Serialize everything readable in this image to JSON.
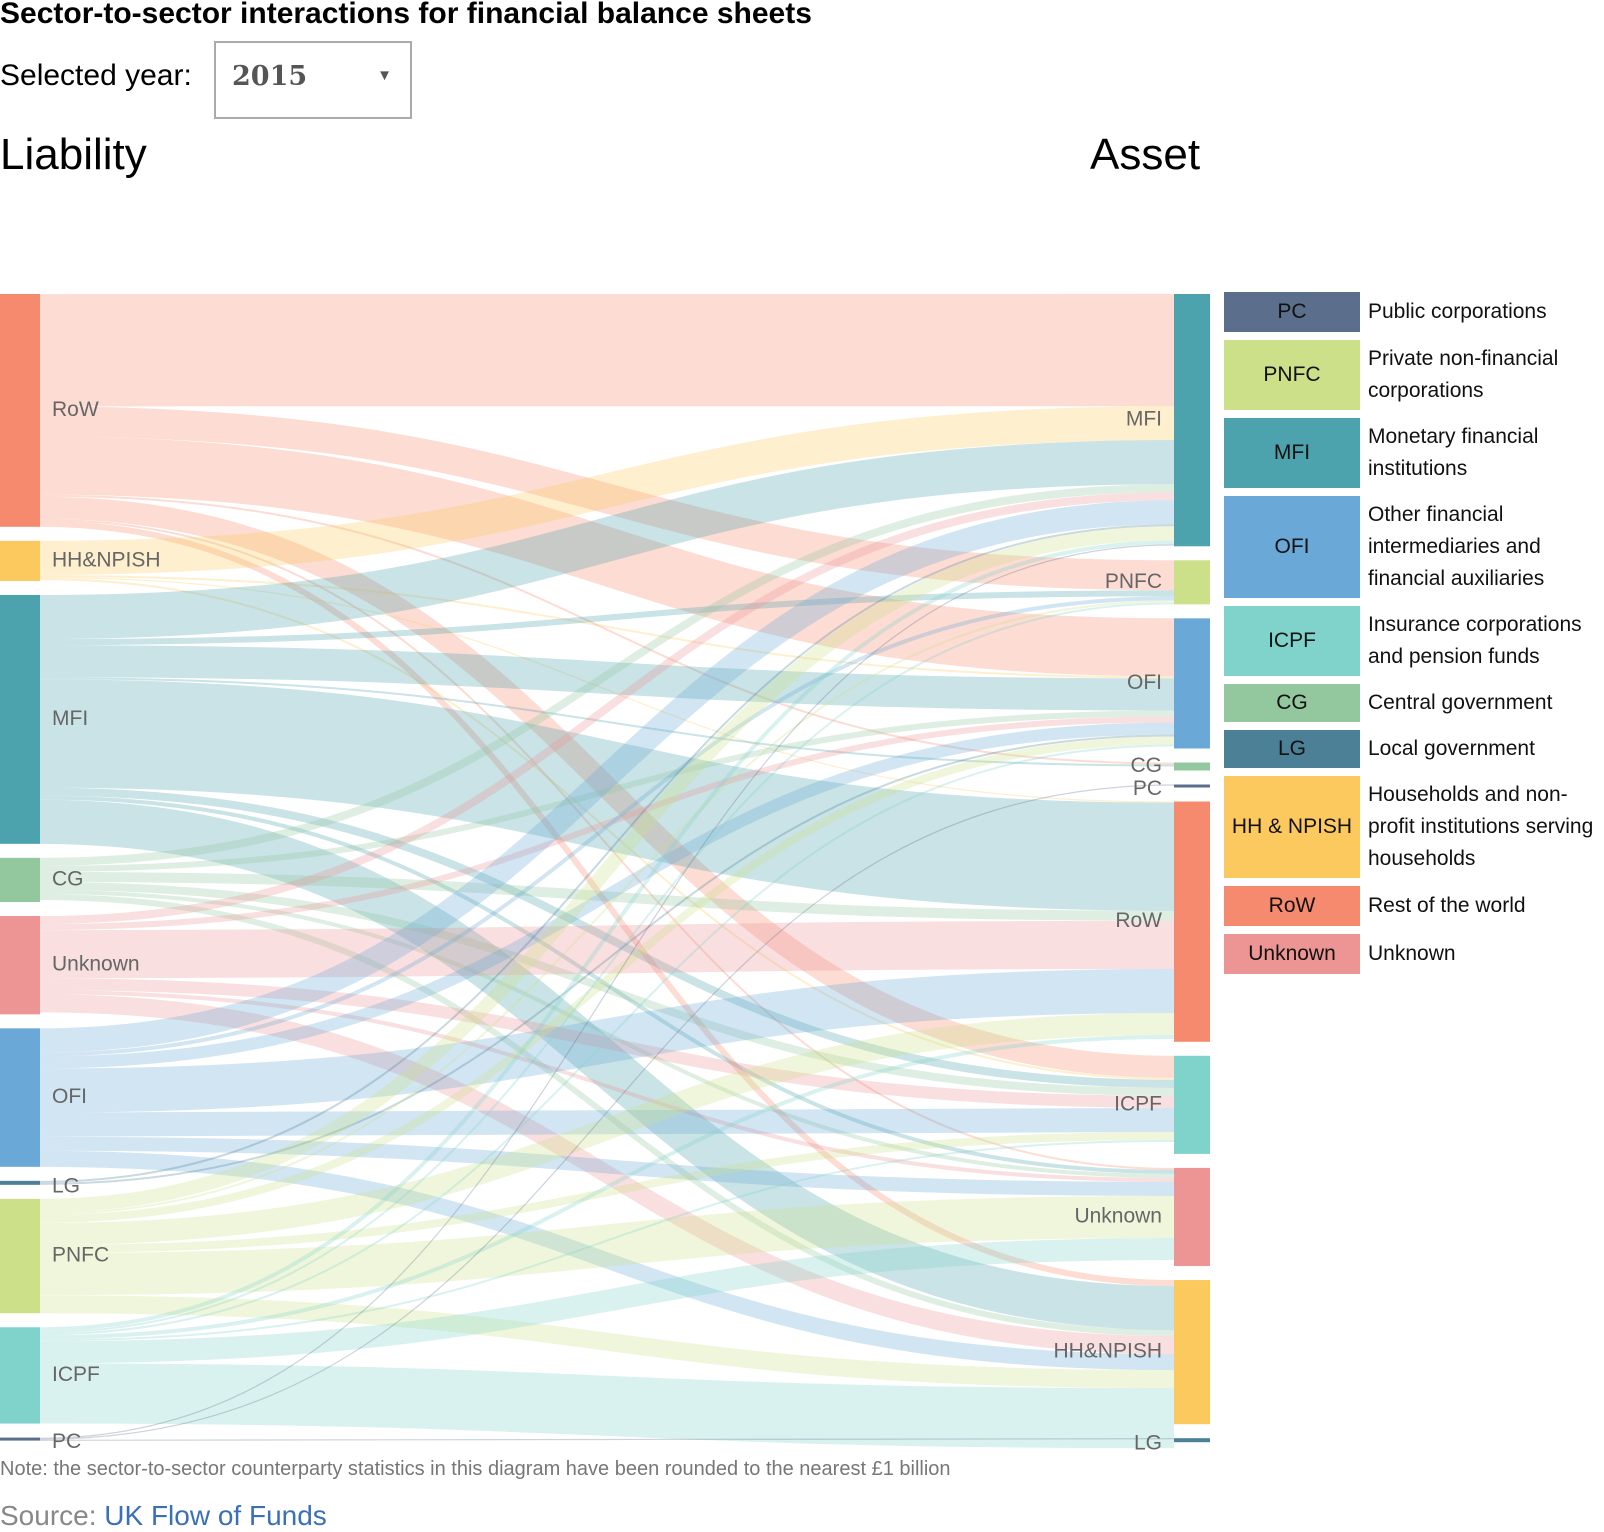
{
  "title": "Sector-to-sector interactions for financial balance sheets",
  "year_selector": {
    "label": "Selected year:",
    "value": "2015"
  },
  "left_heading": "Liability",
  "right_heading": "Asset",
  "colors": {
    "PC": "#5b6e8c",
    "PNFC": "#cce08a",
    "MFI": "#4da3ad",
    "OFI": "#6aa8d8",
    "ICPF": "#80d3cb",
    "CG": "#93c89e",
    "LG": "#4b8096",
    "HH&NPISH": "#fbc95e",
    "RoW": "#f58a6e",
    "Unknown": "#ec9594"
  },
  "legend": [
    {
      "code": "PC",
      "name": "Public corporations"
    },
    {
      "code": "PNFC",
      "name": "Private non-financial corporations"
    },
    {
      "code": "MFI",
      "name": "Monetary financial institutions"
    },
    {
      "code": "OFI",
      "name": "Other financial intermediaries and financial auxiliaries"
    },
    {
      "code": "ICPF",
      "name": "Insurance corporations and pension funds"
    },
    {
      "code": "CG",
      "name": "Central government"
    },
    {
      "code": "LG",
      "name": "Local government"
    },
    {
      "code": "HH & NPISH",
      "name": "Households and non-profit institutions serving households"
    },
    {
      "code": "RoW",
      "name": "Rest of the world"
    },
    {
      "code": "Unknown",
      "name": "Unknown"
    }
  ],
  "chart_data": {
    "type": "sankey",
    "left_nodes": [
      {
        "id": "RoW",
        "label": "RoW",
        "color": "RoW",
        "value": 580
      },
      {
        "id": "HH&NPISH",
        "label": "HH&NPISH",
        "color": "HH&NPISH",
        "value": 100
      },
      {
        "id": "MFI",
        "label": "MFI",
        "color": "MFI",
        "value": 620
      },
      {
        "id": "CG",
        "label": "CG",
        "color": "CG",
        "value": 110
      },
      {
        "id": "Unknown",
        "label": "Unknown",
        "color": "Unknown",
        "value": 245
      },
      {
        "id": "OFI",
        "label": "OFI",
        "color": "OFI",
        "value": 345
      },
      {
        "id": "LG",
        "label": "LG",
        "color": "LG",
        "value": 10
      },
      {
        "id": "PNFC",
        "label": "PNFC",
        "color": "PNFC",
        "value": 285
      },
      {
        "id": "ICPF",
        "label": "ICPF",
        "color": "ICPF",
        "value": 240
      },
      {
        "id": "PC",
        "label": "PC",
        "color": "PC",
        "value": 6
      }
    ],
    "right_nodes": [
      {
        "id": "MFI",
        "label": "MFI",
        "color": "MFI",
        "value": 630
      },
      {
        "id": "PNFC",
        "label": "PNFC",
        "color": "PNFC",
        "value": 110
      },
      {
        "id": "OFI",
        "label": "OFI",
        "color": "OFI",
        "value": 325
      },
      {
        "id": "CG",
        "label": "CG",
        "color": "CG",
        "value": 20
      },
      {
        "id": "PC",
        "label": "PC",
        "color": "PC",
        "value": 2
      },
      {
        "id": "RoW",
        "label": "RoW",
        "color": "RoW",
        "value": 600
      },
      {
        "id": "ICPF",
        "label": "ICPF",
        "color": "ICPF",
        "value": 245
      },
      {
        "id": "Unknown",
        "label": "Unknown",
        "color": "Unknown",
        "value": 245
      },
      {
        "id": "HH&NPISH",
        "label": "HH&NPISH",
        "color": "HH&NPISH",
        "value": 360
      },
      {
        "id": "LG",
        "label": "LG",
        "color": "LG",
        "value": 10
      }
    ],
    "links": [
      {
        "source": "RoW",
        "target": "MFI",
        "value": 280
      },
      {
        "source": "RoW",
        "target": "PNFC",
        "value": 75
      },
      {
        "source": "RoW",
        "target": "OFI",
        "value": 145
      },
      {
        "source": "RoW",
        "target": "ICPF",
        "value": 55
      },
      {
        "source": "RoW",
        "target": "HH&NPISH",
        "value": 15
      },
      {
        "source": "RoW",
        "target": "CG",
        "value": 5
      },
      {
        "source": "RoW",
        "target": "Unknown",
        "value": 5
      },
      {
        "source": "HH&NPISH",
        "target": "MFI",
        "value": 85
      },
      {
        "source": "HH&NPISH",
        "target": "OFI",
        "value": 5
      },
      {
        "source": "HH&NPISH",
        "target": "ICPF",
        "value": 5
      },
      {
        "source": "HH&NPISH",
        "target": "RoW",
        "value": 3
      },
      {
        "source": "MFI",
        "target": "MFI",
        "value": 110
      },
      {
        "source": "MFI",
        "target": "PNFC",
        "value": 15
      },
      {
        "source": "MFI",
        "target": "OFI",
        "value": 80
      },
      {
        "source": "MFI",
        "target": "CG",
        "value": 5
      },
      {
        "source": "MFI",
        "target": "RoW",
        "value": 270
      },
      {
        "source": "MFI",
        "target": "ICPF",
        "value": 20
      },
      {
        "source": "MFI",
        "target": "HH&NPISH",
        "value": 110
      },
      {
        "source": "MFI",
        "target": "Unknown",
        "value": 10
      },
      {
        "source": "CG",
        "target": "MFI",
        "value": 20
      },
      {
        "source": "CG",
        "target": "OFI",
        "value": 15
      },
      {
        "source": "CG",
        "target": "RoW",
        "value": 25
      },
      {
        "source": "CG",
        "target": "ICPF",
        "value": 20
      },
      {
        "source": "CG",
        "target": "HH&NPISH",
        "value": 15
      },
      {
        "source": "CG",
        "target": "Unknown",
        "value": 10
      },
      {
        "source": "Unknown",
        "target": "MFI",
        "value": 20
      },
      {
        "source": "Unknown",
        "target": "OFI",
        "value": 15
      },
      {
        "source": "Unknown",
        "target": "RoW",
        "value": 120
      },
      {
        "source": "Unknown",
        "target": "ICPF",
        "value": 30
      },
      {
        "source": "Unknown",
        "target": "HH&NPISH",
        "value": 45
      },
      {
        "source": "Unknown",
        "target": "Unknown",
        "value": 10
      },
      {
        "source": "OFI",
        "target": "MFI",
        "value": 60
      },
      {
        "source": "OFI",
        "target": "PNFC",
        "value": 10
      },
      {
        "source": "OFI",
        "target": "OFI",
        "value": 30
      },
      {
        "source": "OFI",
        "target": "RoW",
        "value": 110
      },
      {
        "source": "OFI",
        "target": "ICPF",
        "value": 60
      },
      {
        "source": "OFI",
        "target": "HH&NPISH",
        "value": 40
      },
      {
        "source": "OFI",
        "target": "Unknown",
        "value": 35
      },
      {
        "source": "LG",
        "target": "MFI",
        "value": 5
      },
      {
        "source": "LG",
        "target": "OFI",
        "value": 5
      },
      {
        "source": "PNFC",
        "target": "MFI",
        "value": 35
      },
      {
        "source": "PNFC",
        "target": "PNFC",
        "value": 5
      },
      {
        "source": "PNFC",
        "target": "OFI",
        "value": 20
      },
      {
        "source": "PNFC",
        "target": "RoW",
        "value": 55
      },
      {
        "source": "PNFC",
        "target": "ICPF",
        "value": 20
      },
      {
        "source": "PNFC",
        "target": "HH&NPISH",
        "value": 45
      },
      {
        "source": "PNFC",
        "target": "Unknown",
        "value": 105
      },
      {
        "source": "ICPF",
        "target": "MFI",
        "value": 10
      },
      {
        "source": "ICPF",
        "target": "PNFC",
        "value": 5
      },
      {
        "source": "ICPF",
        "target": "OFI",
        "value": 5
      },
      {
        "source": "ICPF",
        "target": "RoW",
        "value": 10
      },
      {
        "source": "ICPF",
        "target": "ICPF",
        "value": 5
      },
      {
        "source": "ICPF",
        "target": "HH&NPISH",
        "value": 150
      },
      {
        "source": "ICPF",
        "target": "Unknown",
        "value": 55
      },
      {
        "source": "PC",
        "target": "MFI",
        "value": 3
      },
      {
        "source": "PC",
        "target": "PC",
        "value": 2
      },
      {
        "source": "PC",
        "target": "LG",
        "value": 1
      }
    ]
  },
  "note": "Note: the sector-to-sector counterparty statistics in this diagram have been rounded to the nearest £1 billion",
  "source": {
    "prefix": "Source: ",
    "link_text": "UK Flow of Funds"
  }
}
